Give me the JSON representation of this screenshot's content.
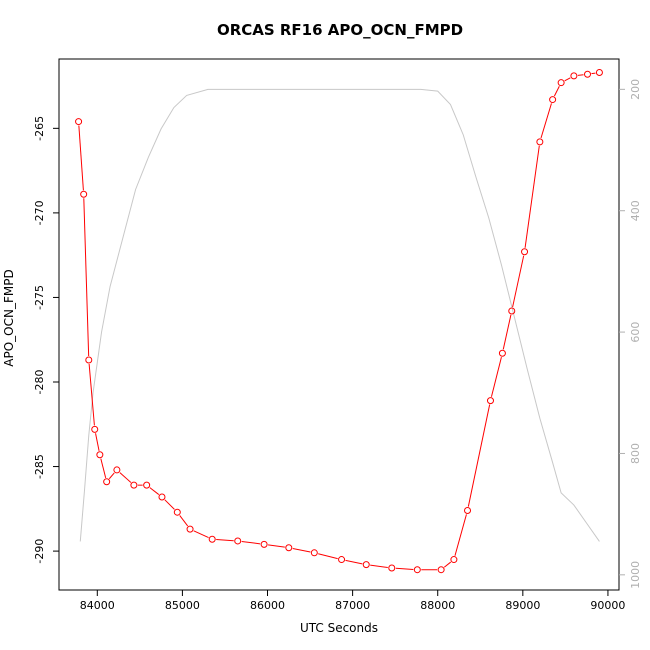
{
  "chart_data": {
    "type": "line",
    "title": "ORCAS RF16 APO_OCN_FMPD",
    "xlabel": "UTC Seconds",
    "ylabel": "APO_OCN_FMPD",
    "xlim": [
      83550,
      90130
    ],
    "ylim": [
      -292.3,
      -260.9
    ],
    "y2lim": [
      1025,
      150
    ],
    "x_ticks": [
      84000,
      85000,
      86000,
      87000,
      88000,
      89000,
      90000
    ],
    "y_ticks": [
      -265,
      -270,
      -275,
      -280,
      -285,
      -290
    ],
    "y2_ticks": [
      200,
      400,
      600,
      800,
      1000
    ],
    "grid": false,
    "legend": "none",
    "series": [
      {
        "color": "#ff0000",
        "axis": "left",
        "markers": "open-circle",
        "x": [
          83780,
          83840,
          83900,
          83970,
          84030,
          84110,
          84230,
          84430,
          84580,
          84760,
          84940,
          85090,
          85350,
          85650,
          85960,
          86250,
          86550,
          86870,
          87160,
          87460,
          87760,
          88040,
          88190,
          88350,
          88620,
          88760,
          88870,
          89020,
          89200,
          89350,
          89450,
          89600,
          89760,
          89900
        ],
        "values": [
          -264.6,
          -268.9,
          -278.7,
          -282.8,
          -284.3,
          -285.9,
          -285.2,
          -286.1,
          -286.1,
          -286.8,
          -287.7,
          -288.7,
          -289.3,
          -289.4,
          -289.6,
          -289.8,
          -290.1,
          -290.5,
          -290.8,
          -291.0,
          -291.1,
          -291.1,
          -290.5,
          -287.6,
          -281.1,
          -278.3,
          -275.8,
          -272.3,
          -265.8,
          -263.3,
          -262.3,
          -261.9,
          -261.8,
          -261.7
        ]
      },
      {
        "color": "#c8c8c8",
        "axis": "right",
        "markers": "none",
        "x": [
          83800,
          83850,
          83900,
          83950,
          84000,
          84050,
          84150,
          84300,
          84450,
          84600,
          84750,
          84900,
          85050,
          85300,
          85600,
          86000,
          86500,
          87000,
          87500,
          87800,
          88000,
          88150,
          88300,
          88450,
          88600,
          88750,
          88900,
          89050,
          89200,
          89350,
          89450,
          89600,
          89750,
          89900
        ],
        "values": [
          945,
          860,
          770,
          700,
          650,
          600,
          525,
          445,
          365,
          312,
          265,
          230,
          210,
          200,
          200,
          200,
          200,
          200,
          200,
          200,
          203,
          225,
          275,
          345,
          412,
          490,
          575,
          660,
          742,
          815,
          865,
          885,
          915,
          945
        ]
      }
    ]
  }
}
